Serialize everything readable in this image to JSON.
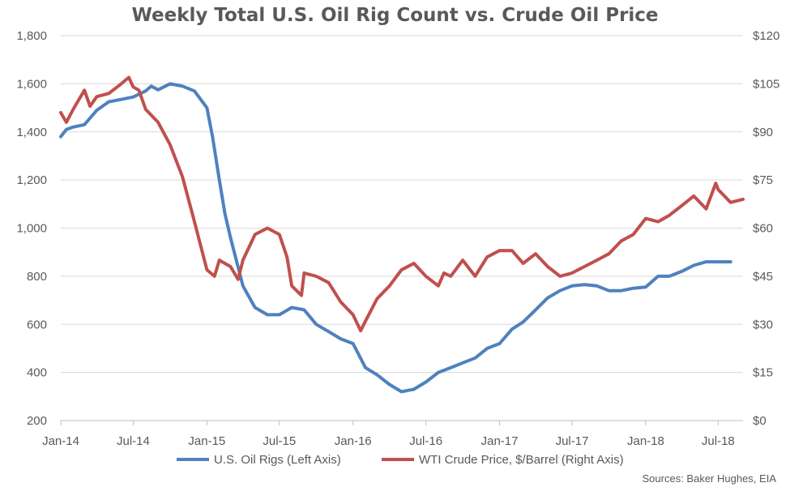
{
  "chart_data": {
    "type": "line",
    "title": "Weekly Total U.S. Oil Rig Count vs. Crude Oil Price",
    "source": "Sources: Baker Hughes, EIA",
    "x_ticks": [
      "Jan-14",
      "Jul-14",
      "Jan-15",
      "Jul-15",
      "Jan-16",
      "Jul-16",
      "Jan-17",
      "Jul-17",
      "Jan-18",
      "Jul-18"
    ],
    "x_range": [
      "2014-01",
      "2018-09"
    ],
    "y_left": {
      "ticks": [
        "200",
        "400",
        "600",
        "800",
        "1,000",
        "1,200",
        "1,400",
        "1,600",
        "1,800"
      ],
      "range": [
        200,
        1800
      ]
    },
    "y_right": {
      "ticks": [
        "$0",
        "$15",
        "$30",
        "$45",
        "$60",
        "$75",
        "$90",
        "$105",
        "$120"
      ],
      "range": [
        0,
        120
      ]
    },
    "grid": true,
    "legend_position": "bottom",
    "series": [
      {
        "name": "U.S. Oil Rigs (Left Axis)",
        "axis": "left",
        "color": "#4f81bd",
        "points": [
          [
            "2014-01",
            1380
          ],
          [
            "2014-01-15",
            1410
          ],
          [
            "2014-02",
            1420
          ],
          [
            "2014-03",
            1430
          ],
          [
            "2014-04",
            1490
          ],
          [
            "2014-05",
            1525
          ],
          [
            "2014-06",
            1535
          ],
          [
            "2014-07",
            1545
          ],
          [
            "2014-08",
            1570
          ],
          [
            "2014-08-15",
            1590
          ],
          [
            "2014-09",
            1575
          ],
          [
            "2014-10",
            1600
          ],
          [
            "2014-11",
            1590
          ],
          [
            "2014-12",
            1570
          ],
          [
            "2015-01",
            1500
          ],
          [
            "2015-01-15",
            1380
          ],
          [
            "2015-02",
            1200
          ],
          [
            "2015-02-15",
            1060
          ],
          [
            "2015-03",
            960
          ],
          [
            "2015-04",
            760
          ],
          [
            "2015-05",
            670
          ],
          [
            "2015-06",
            640
          ],
          [
            "2015-07",
            640
          ],
          [
            "2015-08",
            670
          ],
          [
            "2015-09",
            660
          ],
          [
            "2015-10",
            600
          ],
          [
            "2015-11",
            570
          ],
          [
            "2015-12",
            540
          ],
          [
            "2016-01",
            520
          ],
          [
            "2016-02",
            420
          ],
          [
            "2016-03",
            390
          ],
          [
            "2016-04",
            350
          ],
          [
            "2016-05",
            320
          ],
          [
            "2016-06",
            330
          ],
          [
            "2016-07",
            360
          ],
          [
            "2016-08",
            400
          ],
          [
            "2016-09",
            420
          ],
          [
            "2016-10",
            440
          ],
          [
            "2016-11",
            460
          ],
          [
            "2016-12",
            500
          ],
          [
            "2017-01",
            520
          ],
          [
            "2017-02",
            580
          ],
          [
            "2017-03",
            610
          ],
          [
            "2017-04",
            660
          ],
          [
            "2017-05",
            710
          ],
          [
            "2017-06",
            740
          ],
          [
            "2017-07",
            760
          ],
          [
            "2017-08",
            765
          ],
          [
            "2017-09",
            760
          ],
          [
            "2017-10",
            740
          ],
          [
            "2017-11",
            740
          ],
          [
            "2017-12",
            750
          ],
          [
            "2018-01",
            755
          ],
          [
            "2018-02",
            800
          ],
          [
            "2018-03",
            800
          ],
          [
            "2018-04",
            820
          ],
          [
            "2018-05",
            845
          ],
          [
            "2018-06",
            860
          ],
          [
            "2018-07",
            860
          ],
          [
            "2018-08",
            860
          ]
        ]
      },
      {
        "name": "WTI Crude Price, $/Barrel (Right Axis)",
        "axis": "right",
        "color": "#c0504d",
        "points": [
          [
            "2014-01",
            96
          ],
          [
            "2014-01-15",
            93
          ],
          [
            "2014-02",
            97
          ],
          [
            "2014-02-15",
            100
          ],
          [
            "2014-03",
            103
          ],
          [
            "2014-03-15",
            98
          ],
          [
            "2014-04",
            101
          ],
          [
            "2014-05",
            102
          ],
          [
            "2014-06",
            105
          ],
          [
            "2014-06-20",
            107
          ],
          [
            "2014-07",
            104
          ],
          [
            "2014-07-15",
            103
          ],
          [
            "2014-08",
            97
          ],
          [
            "2014-09",
            93
          ],
          [
            "2014-10",
            86
          ],
          [
            "2014-11",
            76
          ],
          [
            "2014-12",
            62
          ],
          [
            "2015-01",
            47
          ],
          [
            "2015-01-20",
            45
          ],
          [
            "2015-02",
            50
          ],
          [
            "2015-03",
            48
          ],
          [
            "2015-03-20",
            44
          ],
          [
            "2015-04",
            50
          ],
          [
            "2015-05",
            58
          ],
          [
            "2015-06",
            60
          ],
          [
            "2015-07",
            58
          ],
          [
            "2015-07-20",
            51
          ],
          [
            "2015-08",
            42
          ],
          [
            "2015-08-25",
            39
          ],
          [
            "2015-09",
            46
          ],
          [
            "2015-10",
            45
          ],
          [
            "2015-11",
            43
          ],
          [
            "2015-12",
            37
          ],
          [
            "2016-01",
            33
          ],
          [
            "2016-01-20",
            28
          ],
          [
            "2016-02",
            31
          ],
          [
            "2016-03",
            38
          ],
          [
            "2016-04",
            42
          ],
          [
            "2016-05",
            47
          ],
          [
            "2016-06",
            49
          ],
          [
            "2016-07",
            45
          ],
          [
            "2016-08",
            42
          ],
          [
            "2016-08-15",
            46
          ],
          [
            "2016-09",
            45
          ],
          [
            "2016-10",
            50
          ],
          [
            "2016-11",
            45
          ],
          [
            "2016-12",
            51
          ],
          [
            "2017-01",
            53
          ],
          [
            "2017-02",
            53
          ],
          [
            "2017-03",
            49
          ],
          [
            "2017-04",
            52
          ],
          [
            "2017-05",
            48
          ],
          [
            "2017-06",
            45
          ],
          [
            "2017-07",
            46
          ],
          [
            "2017-08",
            48
          ],
          [
            "2017-09",
            50
          ],
          [
            "2017-10",
            52
          ],
          [
            "2017-11",
            56
          ],
          [
            "2017-12",
            58
          ],
          [
            "2018-01",
            63
          ],
          [
            "2018-02",
            62
          ],
          [
            "2018-03",
            64
          ],
          [
            "2018-04",
            67
          ],
          [
            "2018-05",
            70
          ],
          [
            "2018-06",
            66
          ],
          [
            "2018-06-25",
            74
          ],
          [
            "2018-07",
            72
          ],
          [
            "2018-08",
            68
          ],
          [
            "2018-09",
            69
          ]
        ]
      }
    ]
  }
}
